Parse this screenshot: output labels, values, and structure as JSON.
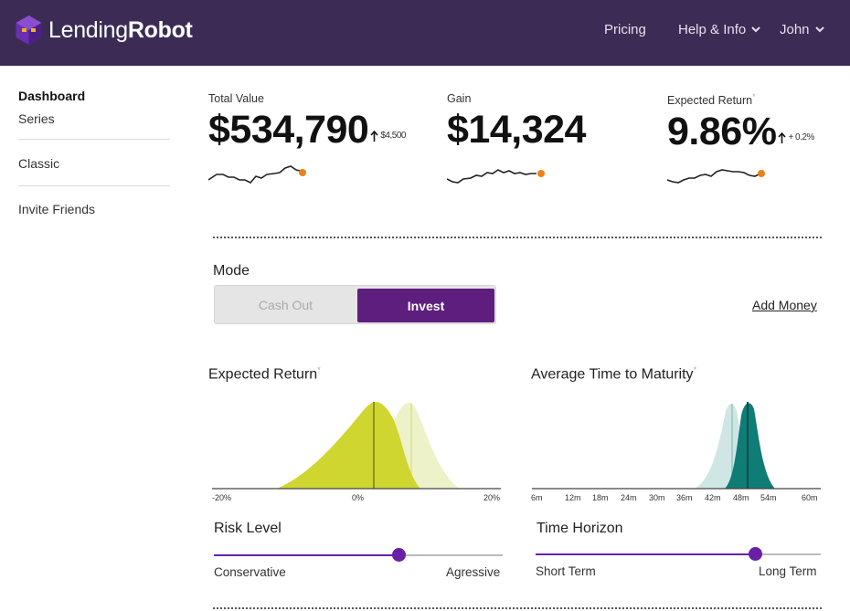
{
  "header": {
    "logo_light": "Lending",
    "logo_bold": "Robot",
    "nav": {
      "pricing": "Pricing",
      "help": "Help & Info",
      "user": "John"
    }
  },
  "sidebar": {
    "items": [
      "Dashboard",
      "Series",
      "Classic",
      "Invite Friends"
    ]
  },
  "stats": {
    "total_value": {
      "label": "Total Value",
      "value": "$534,790",
      "change": "$4,500"
    },
    "gain": {
      "label": "Gain",
      "value": "$14,324"
    },
    "expected_return": {
      "label": "Expected Return",
      "asterisk": "*",
      "value": "9.86%",
      "change": "+ 0.2%"
    }
  },
  "mode": {
    "label": "Mode",
    "cash_out": "Cash Out",
    "invest": "Invest",
    "selected": "Invest",
    "add_money": "Add Money"
  },
  "charts": {
    "expected_return": {
      "title": "Expected Return",
      "asterisk": "*",
      "ticks": [
        "-20%",
        "0%",
        "20%"
      ]
    },
    "maturity": {
      "title": "Average Time to Maturity",
      "asterisk": "*",
      "ticks": [
        "6m",
        "12m",
        "18m",
        "24m",
        "30m",
        "36m",
        "42m",
        "48m",
        "54m",
        "60m"
      ]
    }
  },
  "risk": {
    "title": "Risk Level",
    "min_label": "Conservative",
    "max_label": "Agressive",
    "value_pct": 64
  },
  "horizon": {
    "title": "Time Horizon",
    "min_label": "Short Term",
    "max_label": "Long Term",
    "value_pct": 77
  },
  "colors": {
    "header_bg": "#3c2c55",
    "accent": "#5e1e7e",
    "slider": "#6a1fa8",
    "sparkline_dot": "#f07f1a",
    "return_curve": "#cfd630",
    "return_curve_prev": "#eef2c8",
    "maturity_curve": "#0f7c76",
    "maturity_curve_prev": "#cfe6e4"
  }
}
